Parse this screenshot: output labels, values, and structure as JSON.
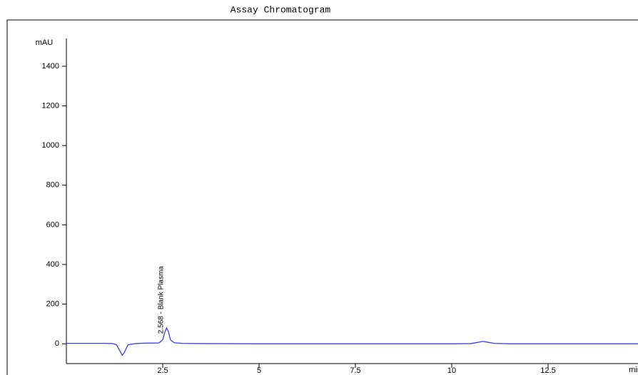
{
  "chart_data": {
    "type": "line",
    "title": "Assay Chromatogram",
    "y_label": "mAU",
    "x_label": "min",
    "x": [
      0,
      0.5,
      1.0,
      1.2,
      1.3,
      1.4,
      1.45,
      1.5,
      1.6,
      1.8,
      2.0,
      2.4,
      2.5,
      2.55,
      2.6,
      2.65,
      2.7,
      2.8,
      3.0,
      3.5,
      5,
      7.5,
      10,
      10.5,
      10.7,
      10.8,
      10.9,
      11.1,
      11.5,
      13,
      14,
      15
    ],
    "series": [
      {
        "name": "Blank Plasma",
        "color": "#3b3bf2",
        "values": [
          2,
          2,
          2,
          1,
          -5,
          -40,
          -58,
          -45,
          -5,
          1,
          3,
          4,
          20,
          55,
          80,
          60,
          20,
          5,
          2,
          1,
          0,
          0,
          0,
          1,
          8,
          12,
          9,
          2,
          0,
          0,
          0,
          0
        ]
      }
    ],
    "annotations": [
      {
        "text": "2.568 - Blank Plasma",
        "x": 2.568
      }
    ],
    "xlim": [
      0,
      15
    ],
    "xticks": [
      2.5,
      5,
      7.5,
      10,
      12.5
    ],
    "ylim": [
      -100,
      1540
    ],
    "yticks": [
      0,
      200,
      400,
      600,
      800,
      1000,
      1200,
      1400
    ]
  }
}
